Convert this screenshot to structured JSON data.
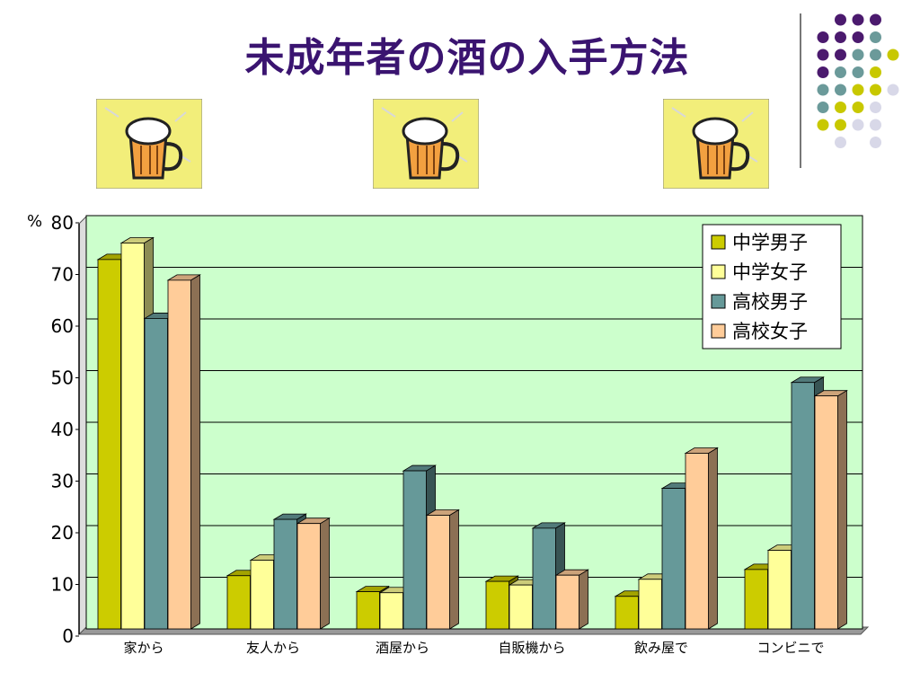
{
  "slide": {
    "title": "未成年者の酒の入手方法",
    "dot_colors": [
      "#4b1a6e",
      "#6b9a9a",
      "#c8c800",
      "#d8d8e8"
    ],
    "beer_icon": "beer-mug-icon"
  },
  "chart_data": {
    "type": "bar",
    "title": "",
    "xlabel": "",
    "ylabel": "%",
    "ylim": [
      0,
      80
    ],
    "yticks": [
      0,
      10,
      20,
      30,
      40,
      50,
      60,
      70,
      80
    ],
    "grid": true,
    "legend_position": "top-right",
    "plot_background": "#ccffcc",
    "categories": [
      "家から",
      "友人から",
      "酒屋から",
      "自販機から",
      "飲み屋で",
      "コンビニで"
    ],
    "series": [
      {
        "name": "中学男子",
        "color": "#cccc00",
        "values": [
          71.5,
          10.3,
          7.2,
          9.2,
          6.3,
          11.5
        ]
      },
      {
        "name": "中学女子",
        "color": "#ffff99",
        "values": [
          74.7,
          13.3,
          7.0,
          8.5,
          9.6,
          15.2
        ]
      },
      {
        "name": "高校男子",
        "color": "#669999",
        "values": [
          60.1,
          21.2,
          30.6,
          19.5,
          27.2,
          47.7
        ]
      },
      {
        "name": "高校女子",
        "color": "#ffcc99",
        "values": [
          67.5,
          20.4,
          22.0,
          10.4,
          34.0,
          45.1
        ]
      }
    ]
  }
}
